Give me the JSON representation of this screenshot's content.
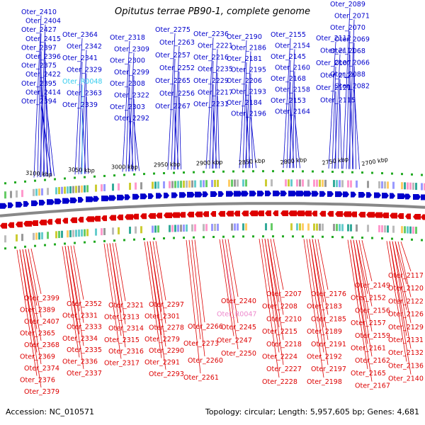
{
  "title": "Opitutus terrae PB90-1, complete genome",
  "accession": "Accession: NC_010571",
  "topology": "Topology: circular; Length: 5,957,605 bp; Genes: 4,681",
  "colors": {
    "forward": "#0000cc",
    "reverse": "#dd0000",
    "rna_forward": "#33ccee",
    "rna_reverse": "#ee88cc",
    "backbone": "#888888",
    "tick_marks": "#22aa22"
  },
  "ticks": [
    "3100 kbp",
    "3050 kbp",
    "3000 kbp",
    "2950 kbp",
    "2900 kbp",
    "2850 kbp",
    "2800 kbp",
    "2750 kbp",
    "2700 kbp"
  ],
  "top_labels": [
    "Oter_2410",
    "Oter_2404",
    "Oter_2427",
    "Oter_2415",
    "Oter_2397",
    "Oter_2396",
    "Oter_2375",
    "Oter_2422",
    "Oter_2395",
    "Oter_2414",
    "Oter_2394",
    "Oter_2364",
    "Oter_2342",
    "Oter_2341",
    "Oter_2329",
    "Oter_R0048",
    "Oter_2363",
    "Oter_2339",
    "Oter_2318",
    "Oter_2309",
    "Oter_2300",
    "Oter_2299",
    "Oter_2308",
    "Oter_2322",
    "Oter_2303",
    "Oter_2292",
    "Oter_2275",
    "Oter_2263",
    "Oter_2257",
    "Oter_2252",
    "Oter_2265",
    "Oter_2256",
    "Oter_2267",
    "Oter_2236",
    "Oter_2221",
    "Oter_2216",
    "Oter_2235",
    "Oter_2229",
    "Oter_2217",
    "Oter_2231",
    "Oter_2190",
    "Oter_2186",
    "Oter_2181",
    "Oter_2195",
    "Oter_2206",
    "Oter_2193",
    "Oter_2184",
    "Oter_2196",
    "Oter_2155",
    "Oter_2154",
    "Oter_2145",
    "Oter_2160",
    "Oter_2168",
    "Oter_2158",
    "Oter_2153",
    "Oter_2164",
    "Oter_2112",
    "Oter_2111",
    "Oter_2107",
    "Oter_2124",
    "Oter_2121",
    "Oter_2115",
    "Oter_2089",
    "Oter_2071",
    "Oter_2070",
    "Oter_2069",
    "Oter_2068",
    "Oter_2066",
    "Oter_2088",
    "Oter_2082"
  ],
  "bottom_labels": [
    "Oter_2399",
    "Oter_2389",
    "Oter_2407",
    "Oter_2365",
    "Oter_2368",
    "Oter_2369",
    "Oter_2374",
    "Oter_2376",
    "Oter_2379",
    "Oter_2352",
    "Oter_2331",
    "Oter_2333",
    "Oter_2334",
    "Oter_2335",
    "Oter_2336",
    "Oter_2337",
    "Oter_2321",
    "Oter_2313",
    "Oter_2314",
    "Oter_2315",
    "Oter_2316",
    "Oter_2317",
    "Oter_2297",
    "Oter_2301",
    "Oter_2278",
    "Oter_2279",
    "Oter_2290",
    "Oter_2291",
    "Oter_2293",
    "Oter_2266",
    "Oter_2273",
    "Oter_2260",
    "Oter_2261",
    "Oter_2240",
    "Oter_R0047",
    "Oter_2245",
    "Oter_2247",
    "Oter_2250",
    "Oter_2207",
    "Oter_2208",
    "Oter_2210",
    "Oter_2215",
    "Oter_2218",
    "Oter_2224",
    "Oter_2227",
    "Oter_2228",
    "Oter_2176",
    "Oter_2183",
    "Oter_2185",
    "Oter_2189",
    "Oter_2191",
    "Oter_2192",
    "Oter_2197",
    "Oter_2198",
    "Oter_2149",
    "Oter_2152",
    "Oter_2156",
    "Oter_2157",
    "Oter_2159",
    "Oter_2161",
    "Oter_2162",
    "Oter_2165",
    "Oter_2167",
    "Oter_2117",
    "Oter_2120",
    "Oter_2122",
    "Oter_2126",
    "Oter_2129",
    "Oter_2131",
    "Oter_2132",
    "Oter_2136",
    "Oter_2140"
  ]
}
